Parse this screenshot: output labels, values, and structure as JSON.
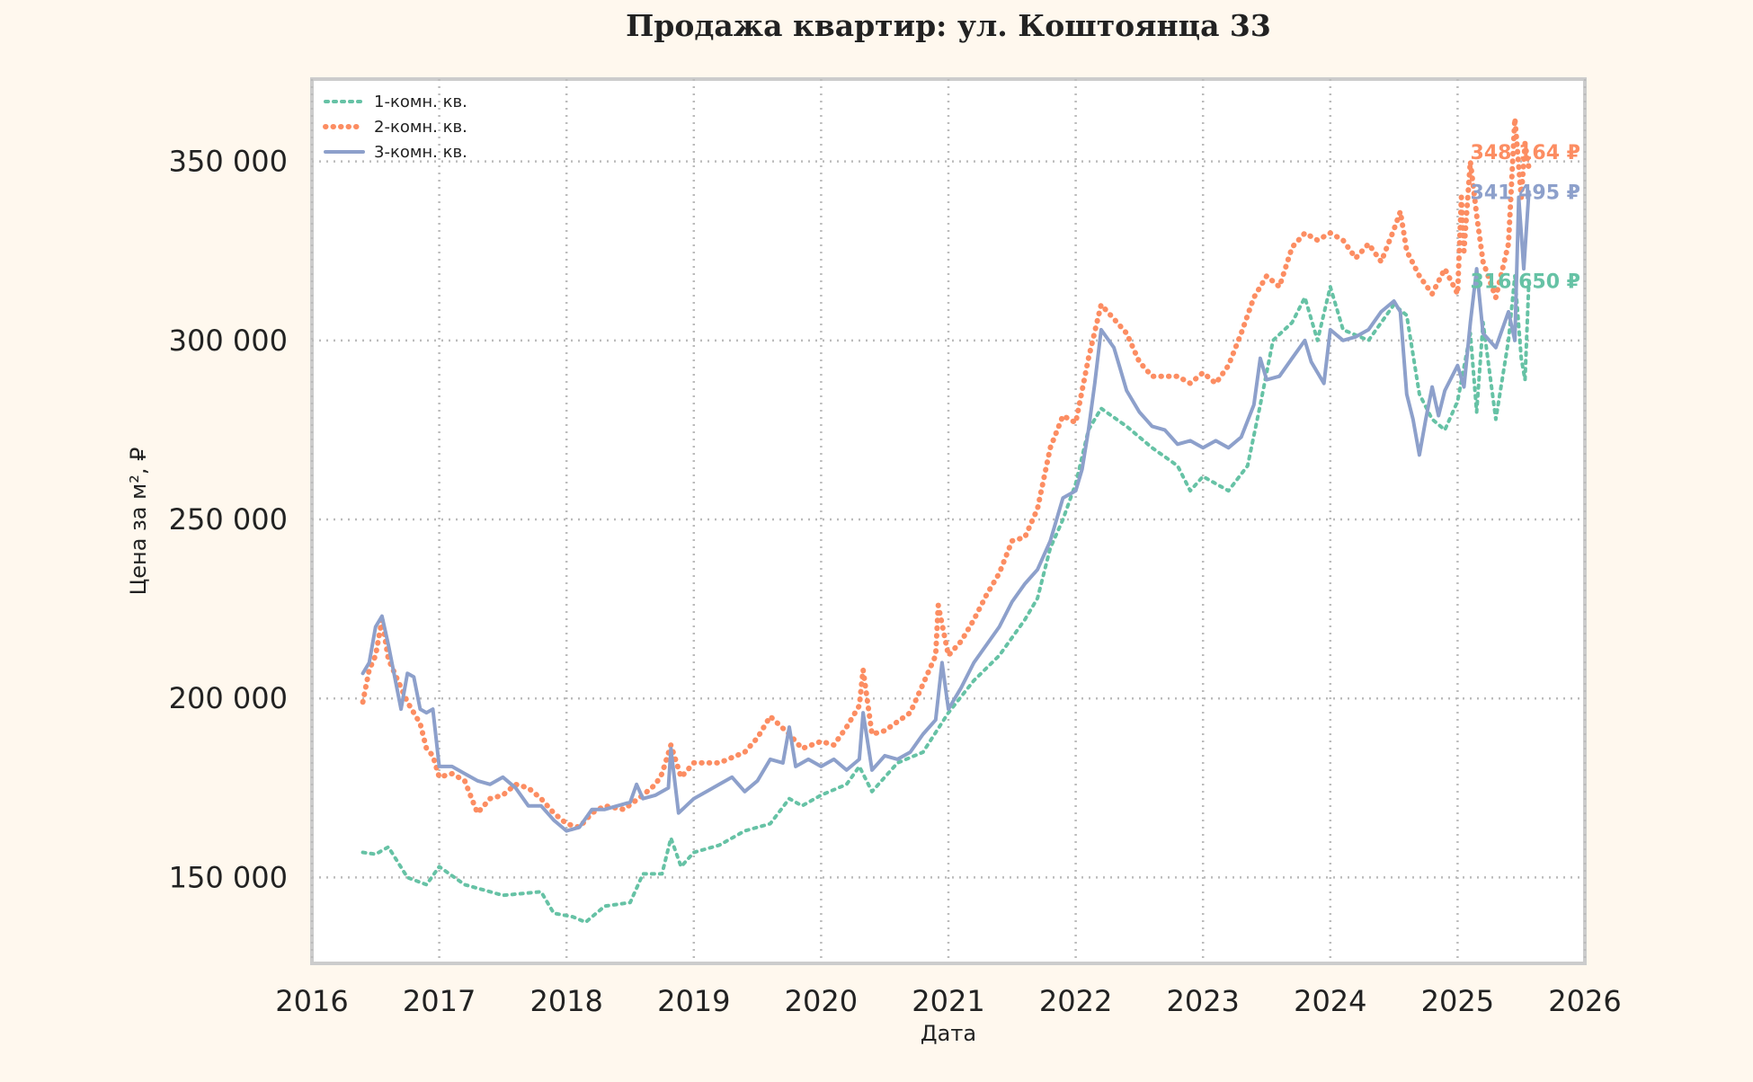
{
  "chart_data": {
    "type": "line",
    "title": "Продажа квартир: ул. Коштоянца 33",
    "xlabel": "Дата",
    "ylabel": "Цена за м², ₽",
    "x_tick_labels": [
      "2016",
      "2017",
      "2018",
      "2019",
      "2020",
      "2021",
      "2022",
      "2023",
      "2024",
      "2025",
      "2026"
    ],
    "y_tick_labels": [
      "150 000",
      "200 000",
      "250 000",
      "300 000",
      "350 000"
    ],
    "y_ticks": [
      150000,
      200000,
      250000,
      300000,
      350000
    ],
    "xlim": [
      2016.0,
      2026.0
    ],
    "ylim": [
      126000,
      373000
    ],
    "grid": true,
    "grid_style": "dotted",
    "legend_position": "top-left",
    "series": [
      {
        "name": "1-комн. кв.",
        "color": "#66c2a5",
        "line_style": "dotted",
        "end_label": "316 650 ₽",
        "points": [
          [
            2016.4,
            157000
          ],
          [
            2016.5,
            156500
          ],
          [
            2016.6,
            158500
          ],
          [
            2016.75,
            150000
          ],
          [
            2016.9,
            148000
          ],
          [
            2017.0,
            153000
          ],
          [
            2017.2,
            148000
          ],
          [
            2017.5,
            145000
          ],
          [
            2017.8,
            146000
          ],
          [
            2017.9,
            140000
          ],
          [
            2018.05,
            139000
          ],
          [
            2018.15,
            137500
          ],
          [
            2018.3,
            142000
          ],
          [
            2018.5,
            143000
          ],
          [
            2018.6,
            151000
          ],
          [
            2018.75,
            151000
          ],
          [
            2018.82,
            161000
          ],
          [
            2018.9,
            153000
          ],
          [
            2019.0,
            157000
          ],
          [
            2019.2,
            159000
          ],
          [
            2019.4,
            163000
          ],
          [
            2019.6,
            165000
          ],
          [
            2019.75,
            172000
          ],
          [
            2019.85,
            170000
          ],
          [
            2020.0,
            173000
          ],
          [
            2020.2,
            176000
          ],
          [
            2020.3,
            181000
          ],
          [
            2020.4,
            174000
          ],
          [
            2020.6,
            182000
          ],
          [
            2020.8,
            185000
          ],
          [
            2021.0,
            196000
          ],
          [
            2021.2,
            205000
          ],
          [
            2021.4,
            212000
          ],
          [
            2021.6,
            222000
          ],
          [
            2021.7,
            228000
          ],
          [
            2021.8,
            242000
          ],
          [
            2021.9,
            250000
          ],
          [
            2022.0,
            260000
          ],
          [
            2022.1,
            275000
          ],
          [
            2022.2,
            281000
          ],
          [
            2022.4,
            276000
          ],
          [
            2022.6,
            270000
          ],
          [
            2022.8,
            265000
          ],
          [
            2022.9,
            258000
          ],
          [
            2023.0,
            262000
          ],
          [
            2023.2,
            258000
          ],
          [
            2023.35,
            265000
          ],
          [
            2023.45,
            282000
          ],
          [
            2023.55,
            300000
          ],
          [
            2023.7,
            305000
          ],
          [
            2023.8,
            312000
          ],
          [
            2023.9,
            300000
          ],
          [
            2024.0,
            315000
          ],
          [
            2024.1,
            303000
          ],
          [
            2024.3,
            300000
          ],
          [
            2024.5,
            310000
          ],
          [
            2024.6,
            307000
          ],
          [
            2024.7,
            285000
          ],
          [
            2024.8,
            278000
          ],
          [
            2024.9,
            275000
          ],
          [
            2025.0,
            283000
          ],
          [
            2025.1,
            302000
          ],
          [
            2025.15,
            280000
          ],
          [
            2025.2,
            305000
          ],
          [
            2025.3,
            278000
          ],
          [
            2025.4,
            300000
          ],
          [
            2025.45,
            318000
          ],
          [
            2025.5,
            295000
          ],
          [
            2025.53,
            289000
          ],
          [
            2025.56,
            316650
          ]
        ]
      },
      {
        "name": "2-комн. кв.",
        "color": "#fc8d62",
        "line_style": "dotted-marker",
        "end_label": "348 164 ₽",
        "points": [
          [
            2016.4,
            199000
          ],
          [
            2016.45,
            208000
          ],
          [
            2016.5,
            212000
          ],
          [
            2016.55,
            222000
          ],
          [
            2016.6,
            211000
          ],
          [
            2016.75,
            199000
          ],
          [
            2016.85,
            193000
          ],
          [
            2016.9,
            186000
          ],
          [
            2016.95,
            184000
          ],
          [
            2017.0,
            178000
          ],
          [
            2017.1,
            179000
          ],
          [
            2017.2,
            177000
          ],
          [
            2017.3,
            168000
          ],
          [
            2017.4,
            172000
          ],
          [
            2017.5,
            173000
          ],
          [
            2017.6,
            176000
          ],
          [
            2017.7,
            175000
          ],
          [
            2017.8,
            172000
          ],
          [
            2017.9,
            168000
          ],
          [
            2018.0,
            165000
          ],
          [
            2018.1,
            164000
          ],
          [
            2018.2,
            168000
          ],
          [
            2018.3,
            170000
          ],
          [
            2018.45,
            169000
          ],
          [
            2018.6,
            173000
          ],
          [
            2018.7,
            176000
          ],
          [
            2018.75,
            179000
          ],
          [
            2018.82,
            187000
          ],
          [
            2018.9,
            178000
          ],
          [
            2019.0,
            182000
          ],
          [
            2019.2,
            182000
          ],
          [
            2019.4,
            185000
          ],
          [
            2019.5,
            189000
          ],
          [
            2019.6,
            195000
          ],
          [
            2019.75,
            190000
          ],
          [
            2019.85,
            186000
          ],
          [
            2020.0,
            188000
          ],
          [
            2020.1,
            187000
          ],
          [
            2020.2,
            192000
          ],
          [
            2020.3,
            198000
          ],
          [
            2020.33,
            208000
          ],
          [
            2020.4,
            190000
          ],
          [
            2020.5,
            191000
          ],
          [
            2020.7,
            196000
          ],
          [
            2020.8,
            204000
          ],
          [
            2020.9,
            212000
          ],
          [
            2020.92,
            226000
          ],
          [
            2021.0,
            212000
          ],
          [
            2021.1,
            216000
          ],
          [
            2021.2,
            222000
          ],
          [
            2021.3,
            229000
          ],
          [
            2021.4,
            235000
          ],
          [
            2021.5,
            244000
          ],
          [
            2021.6,
            245000
          ],
          [
            2021.7,
            253000
          ],
          [
            2021.8,
            270000
          ],
          [
            2021.9,
            279000
          ],
          [
            2022.0,
            277000
          ],
          [
            2022.1,
            295000
          ],
          [
            2022.2,
            310000
          ],
          [
            2022.3,
            306000
          ],
          [
            2022.4,
            302000
          ],
          [
            2022.5,
            294000
          ],
          [
            2022.6,
            290000
          ],
          [
            2022.8,
            290000
          ],
          [
            2022.9,
            288000
          ],
          [
            2023.0,
            291000
          ],
          [
            2023.1,
            288000
          ],
          [
            2023.2,
            293000
          ],
          [
            2023.3,
            302000
          ],
          [
            2023.4,
            312000
          ],
          [
            2023.5,
            318000
          ],
          [
            2023.6,
            315000
          ],
          [
            2023.7,
            326000
          ],
          [
            2023.8,
            330000
          ],
          [
            2023.9,
            328000
          ],
          [
            2024.0,
            330000
          ],
          [
            2024.1,
            328000
          ],
          [
            2024.2,
            323000
          ],
          [
            2024.3,
            327000
          ],
          [
            2024.4,
            322000
          ],
          [
            2024.5,
            331000
          ],
          [
            2024.55,
            336000
          ],
          [
            2024.6,
            325000
          ],
          [
            2024.7,
            318000
          ],
          [
            2024.8,
            313000
          ],
          [
            2024.9,
            320000
          ],
          [
            2025.0,
            313000
          ],
          [
            2025.03,
            340000
          ],
          [
            2025.05,
            325000
          ],
          [
            2025.1,
            350000
          ],
          [
            2025.15,
            335000
          ],
          [
            2025.2,
            322000
          ],
          [
            2025.3,
            312000
          ],
          [
            2025.4,
            327000
          ],
          [
            2025.45,
            362000
          ],
          [
            2025.5,
            340000
          ],
          [
            2025.53,
            355000
          ],
          [
            2025.56,
            348164
          ]
        ]
      },
      {
        "name": "3-комн. кв.",
        "color": "#8da0cb",
        "line_style": "solid",
        "end_label": "341 495 ₽",
        "points": [
          [
            2016.4,
            207000
          ],
          [
            2016.45,
            210000
          ],
          [
            2016.5,
            220000
          ],
          [
            2016.55,
            223000
          ],
          [
            2016.6,
            215000
          ],
          [
            2016.7,
            197000
          ],
          [
            2016.75,
            207000
          ],
          [
            2016.8,
            206000
          ],
          [
            2016.85,
            197000
          ],
          [
            2016.9,
            196000
          ],
          [
            2016.95,
            197000
          ],
          [
            2017.0,
            181000
          ],
          [
            2017.1,
            181000
          ],
          [
            2017.2,
            179000
          ],
          [
            2017.3,
            177000
          ],
          [
            2017.4,
            176000
          ],
          [
            2017.5,
            178000
          ],
          [
            2017.6,
            175000
          ],
          [
            2017.7,
            170000
          ],
          [
            2017.8,
            170000
          ],
          [
            2017.9,
            166000
          ],
          [
            2018.0,
            163000
          ],
          [
            2018.1,
            164000
          ],
          [
            2018.2,
            169000
          ],
          [
            2018.3,
            169000
          ],
          [
            2018.4,
            170000
          ],
          [
            2018.5,
            171000
          ],
          [
            2018.55,
            176000
          ],
          [
            2018.6,
            172000
          ],
          [
            2018.7,
            173000
          ],
          [
            2018.8,
            175000
          ],
          [
            2018.82,
            186000
          ],
          [
            2018.88,
            168000
          ],
          [
            2019.0,
            172000
          ],
          [
            2019.1,
            174000
          ],
          [
            2019.2,
            176000
          ],
          [
            2019.3,
            178000
          ],
          [
            2019.4,
            174000
          ],
          [
            2019.5,
            177000
          ],
          [
            2019.6,
            183000
          ],
          [
            2019.7,
            182000
          ],
          [
            2019.75,
            192000
          ],
          [
            2019.8,
            181000
          ],
          [
            2019.9,
            183000
          ],
          [
            2020.0,
            181000
          ],
          [
            2020.1,
            183000
          ],
          [
            2020.2,
            180000
          ],
          [
            2020.3,
            183000
          ],
          [
            2020.33,
            196000
          ],
          [
            2020.4,
            180000
          ],
          [
            2020.5,
            184000
          ],
          [
            2020.6,
            183000
          ],
          [
            2020.7,
            185000
          ],
          [
            2020.8,
            190000
          ],
          [
            2020.9,
            194000
          ],
          [
            2020.95,
            210000
          ],
          [
            2021.0,
            197000
          ],
          [
            2021.1,
            203000
          ],
          [
            2021.2,
            210000
          ],
          [
            2021.3,
            215000
          ],
          [
            2021.4,
            220000
          ],
          [
            2021.5,
            227000
          ],
          [
            2021.6,
            232000
          ],
          [
            2021.7,
            236000
          ],
          [
            2021.8,
            244000
          ],
          [
            2021.9,
            256000
          ],
          [
            2022.0,
            258000
          ],
          [
            2022.05,
            264000
          ],
          [
            2022.1,
            275000
          ],
          [
            2022.15,
            288000
          ],
          [
            2022.2,
            303000
          ],
          [
            2022.3,
            298000
          ],
          [
            2022.35,
            292000
          ],
          [
            2022.4,
            286000
          ],
          [
            2022.5,
            280000
          ],
          [
            2022.6,
            276000
          ],
          [
            2022.7,
            275000
          ],
          [
            2022.8,
            271000
          ],
          [
            2022.9,
            272000
          ],
          [
            2023.0,
            270000
          ],
          [
            2023.1,
            272000
          ],
          [
            2023.2,
            270000
          ],
          [
            2023.3,
            273000
          ],
          [
            2023.4,
            282000
          ],
          [
            2023.45,
            295000
          ],
          [
            2023.5,
            289000
          ],
          [
            2023.6,
            290000
          ],
          [
            2023.7,
            295000
          ],
          [
            2023.8,
            300000
          ],
          [
            2023.85,
            294000
          ],
          [
            2023.95,
            288000
          ],
          [
            2024.0,
            303000
          ],
          [
            2024.1,
            300000
          ],
          [
            2024.2,
            301000
          ],
          [
            2024.3,
            303000
          ],
          [
            2024.4,
            308000
          ],
          [
            2024.5,
            311000
          ],
          [
            2024.55,
            308000
          ],
          [
            2024.6,
            285000
          ],
          [
            2024.65,
            278000
          ],
          [
            2024.7,
            268000
          ],
          [
            2024.75,
            278000
          ],
          [
            2024.8,
            287000
          ],
          [
            2024.85,
            279000
          ],
          [
            2024.9,
            286000
          ],
          [
            2025.0,
            293000
          ],
          [
            2025.05,
            287000
          ],
          [
            2025.1,
            305000
          ],
          [
            2025.15,
            320000
          ],
          [
            2025.2,
            302000
          ],
          [
            2025.3,
            298000
          ],
          [
            2025.4,
            308000
          ],
          [
            2025.45,
            300000
          ],
          [
            2025.48,
            340000
          ],
          [
            2025.52,
            320000
          ],
          [
            2025.56,
            341495
          ]
        ]
      }
    ]
  },
  "colors": {
    "background": "#fff8ee",
    "plot_background": "#ffffff",
    "frame": "#cccccc",
    "grid": "#bbbbbb"
  }
}
